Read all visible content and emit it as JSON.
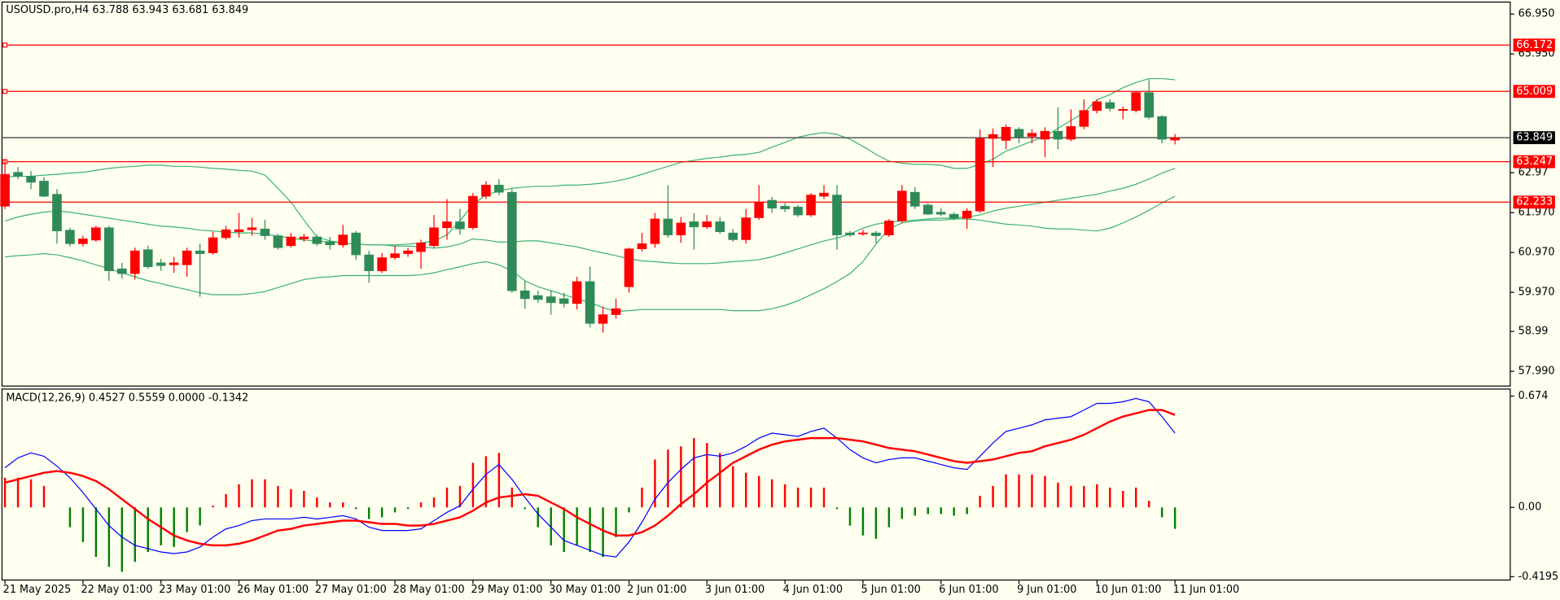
{
  "chart_data": [
    {
      "type": "candlestick",
      "title": "USOUSD.pro,H4  63.788 63.943 63.681 63.849",
      "categories": [
        "21 May 2025",
        null,
        null,
        null,
        null,
        null,
        "22 May 01:00",
        null,
        null,
        null,
        null,
        null,
        "23 May 01:00",
        null,
        null,
        null,
        null,
        null,
        "26 May 01:00",
        null,
        null,
        null,
        null,
        null,
        "27 May 01:00",
        null,
        null,
        null,
        null,
        null,
        "28 May 01:00",
        null,
        null,
        null,
        null,
        null,
        "29 May 01:00",
        null,
        null,
        null,
        null,
        null,
        "30 May 01:00",
        null,
        null,
        null,
        null,
        null,
        "2 Jun 01:00",
        null,
        null,
        null,
        null,
        null,
        "3 Jun 01:00",
        null,
        null,
        null,
        null,
        null,
        "4 Jun 01:00",
        null,
        null,
        null,
        null,
        null,
        "5 Jun 01:00",
        null,
        null,
        null,
        null,
        null,
        "6 Jun 01:00",
        null,
        null,
        null,
        null,
        null,
        "9 Jun 01:00",
        null,
        null,
        null,
        null,
        null,
        "10 Jun 01:00",
        null,
        null,
        null,
        null,
        null,
        "11 Jun 01:00"
      ],
      "open": [
        62.13,
        62.98,
        62.88,
        62.76,
        62.43,
        61.53,
        61.19,
        61.28,
        61.59,
        60.56,
        60.44,
        61.04,
        60.71,
        60.66,
        60.66,
        61.01,
        60.96,
        61.34,
        61.49,
        61.54,
        61.56,
        61.39,
        61.14,
        61.31,
        61.36,
        61.24,
        61.16,
        61.46,
        60.91,
        60.51,
        60.84,
        60.94,
        60.99,
        61.14,
        61.59,
        61.74,
        61.59,
        62.38,
        62.66,
        62.48,
        60.01,
        59.89,
        59.86,
        59.81,
        59.69,
        60.24,
        59.19,
        59.41,
        60.11,
        61.06,
        61.19,
        61.81,
        61.41,
        61.74,
        61.61,
        61.74,
        61.46,
        61.29,
        61.84,
        62.28,
        62.13,
        62.11,
        61.91,
        62.38,
        62.41,
        61.46,
        61.44,
        61.46,
        61.41,
        61.76,
        62.48,
        62.16,
        61.98,
        61.93,
        61.83,
        62.01,
        63.83,
        63.78,
        64.06,
        63.88,
        63.81,
        64.01,
        63.81,
        64.13,
        64.53,
        64.73,
        64.53,
        64.53,
        64.98,
        64.38,
        63.788
      ],
      "high": [
        63.31,
        63.11,
        63.01,
        62.86,
        62.56,
        61.59,
        61.39,
        61.64,
        61.64,
        60.71,
        61.09,
        61.14,
        60.81,
        60.86,
        61.09,
        61.19,
        61.49,
        61.64,
        61.96,
        61.84,
        61.79,
        61.44,
        61.46,
        61.44,
        61.41,
        61.36,
        61.66,
        61.51,
        61.01,
        60.96,
        61.14,
        61.09,
        61.29,
        61.91,
        62.31,
        62.06,
        62.46,
        62.76,
        62.81,
        62.56,
        60.26,
        60.01,
        60.01,
        59.96,
        60.36,
        60.61,
        59.61,
        59.81,
        61.09,
        61.46,
        61.96,
        62.66,
        61.86,
        61.96,
        61.91,
        61.86,
        61.56,
        62.06,
        62.66,
        62.36,
        62.21,
        62.16,
        62.46,
        62.66,
        62.66,
        61.51,
        61.54,
        61.51,
        61.81,
        62.66,
        62.61,
        62.21,
        62.08,
        61.98,
        62.08,
        64.06,
        64.08,
        64.18,
        64.11,
        64.06,
        64.11,
        64.61,
        64.56,
        64.81,
        64.81,
        64.81,
        64.63,
        65.01,
        65.31,
        64.41,
        63.943
      ],
      "low": [
        62.06,
        62.81,
        62.56,
        62.36,
        61.19,
        61.12,
        61.12,
        61.24,
        60.26,
        60.31,
        60.29,
        60.56,
        60.51,
        60.46,
        60.36,
        59.86,
        60.91,
        61.29,
        61.34,
        61.39,
        61.29,
        61.04,
        61.09,
        61.24,
        61.14,
        61.04,
        61.09,
        60.79,
        60.21,
        60.46,
        60.79,
        60.86,
        60.56,
        61.09,
        61.29,
        61.41,
        61.54,
        62.31,
        62.41,
        59.96,
        59.56,
        59.71,
        59.41,
        59.59,
        59.54,
        59.09,
        58.96,
        59.31,
        59.96,
        60.99,
        61.09,
        61.34,
        61.21,
        61.04,
        61.56,
        61.44,
        61.24,
        61.19,
        61.79,
        61.96,
        61.98,
        61.86,
        61.86,
        62.31,
        61.04,
        61.36,
        61.39,
        61.21,
        61.36,
        61.71,
        62.06,
        61.91,
        61.88,
        61.78,
        61.56,
        61.96,
        63.11,
        63.56,
        63.71,
        63.71,
        63.36,
        63.56,
        63.76,
        64.06,
        64.46,
        64.51,
        64.31,
        64.48,
        64.31,
        63.71,
        63.681
      ],
      "close": [
        62.93,
        62.88,
        62.73,
        62.38,
        61.51,
        61.19,
        61.31,
        61.59,
        60.51,
        60.44,
        61.01,
        60.61,
        60.64,
        60.71,
        61.01,
        60.94,
        61.34,
        61.54,
        61.54,
        61.59,
        61.39,
        61.09,
        61.36,
        61.36,
        61.19,
        61.16,
        61.41,
        60.91,
        60.51,
        60.84,
        60.94,
        61.01,
        61.21,
        61.59,
        61.74,
        61.56,
        62.38,
        62.66,
        62.48,
        60.01,
        59.81,
        59.79,
        59.71,
        59.69,
        60.24,
        59.19,
        59.41,
        59.56,
        61.06,
        61.19,
        61.81,
        61.41,
        61.71,
        61.61,
        61.74,
        61.49,
        61.29,
        61.84,
        62.24,
        62.08,
        62.06,
        61.91,
        62.41,
        62.46,
        61.41,
        61.41,
        61.46,
        61.39,
        61.76,
        62.51,
        62.13,
        61.93,
        61.93,
        61.83,
        62.01,
        63.83,
        63.93,
        64.11,
        63.86,
        63.96,
        64.01,
        63.81,
        64.13,
        64.53,
        64.75,
        64.58,
        64.56,
        64.98,
        64.36,
        63.81,
        63.849
      ],
      "up_color": "#ff0000",
      "down_color": "#2e8b57",
      "series": [
        {
          "name": "Upper Band",
          "color": "#3cb371",
          "values": [
            62.86,
            62.88,
            62.88,
            62.91,
            62.93,
            62.96,
            62.98,
            63.03,
            63.08,
            63.11,
            63.13,
            63.16,
            63.16,
            63.13,
            63.13,
            63.11,
            63.08,
            63.06,
            63.03,
            63.01,
            62.91,
            62.58,
            62.23,
            61.78,
            61.36,
            61.26,
            61.21,
            61.18,
            61.16,
            61.16,
            61.16,
            61.18,
            61.21,
            61.26,
            61.41,
            61.76,
            62.18,
            62.41,
            62.51,
            62.58,
            62.61,
            62.63,
            62.63,
            62.66,
            62.66,
            62.68,
            62.71,
            62.76,
            62.83,
            62.93,
            63.03,
            63.13,
            63.23,
            63.28,
            63.33,
            63.36,
            63.41,
            63.43,
            63.48,
            63.61,
            63.73,
            63.86,
            63.93,
            63.98,
            63.93,
            63.81,
            63.63,
            63.43,
            63.26,
            63.21,
            63.18,
            63.18,
            63.16,
            63.08,
            63.08,
            63.18,
            63.31,
            63.51,
            63.63,
            63.76,
            63.88,
            64.08,
            64.28,
            64.48,
            64.8,
            64.93,
            65.1,
            65.23,
            65.33,
            65.33,
            65.3
          ]
        },
        {
          "name": "Middle Band",
          "color": "#3cb371",
          "values": [
            61.76,
            61.86,
            61.93,
            61.98,
            62.01,
            61.98,
            61.93,
            61.88,
            61.83,
            61.78,
            61.73,
            61.68,
            61.63,
            61.61,
            61.58,
            61.53,
            61.51,
            61.48,
            61.46,
            61.46,
            61.43,
            61.38,
            61.33,
            61.28,
            61.26,
            61.23,
            61.21,
            61.18,
            61.16,
            61.16,
            61.13,
            61.13,
            61.11,
            61.08,
            61.11,
            61.18,
            61.31,
            61.28,
            61.23,
            61.23,
            61.26,
            61.26,
            61.21,
            61.16,
            61.11,
            61.03,
            60.96,
            60.89,
            60.81,
            60.76,
            60.74,
            60.71,
            60.69,
            60.69,
            60.69,
            60.71,
            60.74,
            60.76,
            60.79,
            60.86,
            60.96,
            61.06,
            61.16,
            61.26,
            61.33,
            61.43,
            61.58,
            61.68,
            61.73,
            61.76,
            61.78,
            61.81,
            61.83,
            61.83,
            61.86,
            61.91,
            62.01,
            62.08,
            62.13,
            62.18,
            62.23,
            62.28,
            62.33,
            62.38,
            62.43,
            62.51,
            62.58,
            62.68,
            62.81,
            62.96,
            63.08
          ]
        },
        {
          "name": "Lower Band",
          "color": "#3cb371",
          "values": [
            60.86,
            60.89,
            60.91,
            60.94,
            60.91,
            60.84,
            60.76,
            60.66,
            60.56,
            60.46,
            60.36,
            60.26,
            60.19,
            60.11,
            60.04,
            59.96,
            59.91,
            59.91,
            59.91,
            59.94,
            59.99,
            60.09,
            60.19,
            60.29,
            60.34,
            60.36,
            60.39,
            60.39,
            60.39,
            60.39,
            60.39,
            60.39,
            60.41,
            60.46,
            60.54,
            60.61,
            60.69,
            60.74,
            60.66,
            60.51,
            60.26,
            60.11,
            60.01,
            59.91,
            59.81,
            59.71,
            59.59,
            59.49,
            59.51,
            59.54,
            59.54,
            59.54,
            59.54,
            59.54,
            59.54,
            59.54,
            59.51,
            59.51,
            59.51,
            59.56,
            59.64,
            59.76,
            59.91,
            60.06,
            60.24,
            60.44,
            60.74,
            61.18,
            61.56,
            61.71,
            61.76,
            61.78,
            61.78,
            61.81,
            61.81,
            61.78,
            61.73,
            61.68,
            61.66,
            61.63,
            61.58,
            61.56,
            61.56,
            61.53,
            61.51,
            61.58,
            61.71,
            61.86,
            62.03,
            62.21,
            62.38
          ]
        }
      ],
      "levels": [
        {
          "value": 66.172,
          "label": "66.172"
        },
        {
          "value": 65.009,
          "label": "65.009"
        },
        {
          "value": 63.247,
          "label": "63.247"
        },
        {
          "value": 62.233,
          "label": "62.233"
        }
      ],
      "level_color": "#ff0000",
      "current_price": 63.849,
      "current_color": "#555555",
      "ylim": [
        57.62,
        67.25
      ],
      "yticks": [
        {
          "value": 66.95,
          "label": "66.950"
        },
        {
          "value": 65.95,
          "label": "65.950"
        },
        62.97,
        {
          "value": 61.97,
          "label": "61.970"
        },
        {
          "value": 60.97,
          "label": "60.970"
        },
        {
          "value": 59.97,
          "label": "59.970"
        },
        58.99,
        {
          "value": 57.99,
          "label": "57.990"
        }
      ]
    },
    {
      "type": "macd",
      "title": "MACD(12,26,9) 0.4527 0.5559 0.0000 -0.1342",
      "histogram": [
        0.18,
        0.18,
        0.17,
        0.13,
        0.0,
        -0.12,
        -0.21,
        -0.3,
        -0.36,
        -0.39,
        -0.33,
        -0.27,
        -0.23,
        -0.24,
        -0.15,
        -0.11,
        0.01,
        0.08,
        0.14,
        0.17,
        0.17,
        0.13,
        0.11,
        0.1,
        0.06,
        0.03,
        0.03,
        -0.01,
        -0.07,
        -0.06,
        -0.03,
        -0.01,
        0.03,
        0.06,
        0.12,
        0.13,
        0.27,
        0.31,
        0.33,
        0.12,
        -0.01,
        -0.12,
        -0.23,
        -0.27,
        -0.23,
        -0.27,
        -0.3,
        -0.18,
        -0.03,
        0.12,
        0.29,
        0.35,
        0.37,
        0.42,
        0.39,
        0.33,
        0.25,
        0.21,
        0.19,
        0.17,
        0.14,
        0.12,
        0.12,
        0.12,
        -0.01,
        -0.11,
        -0.17,
        -0.19,
        -0.12,
        -0.07,
        -0.05,
        -0.04,
        -0.04,
        -0.05,
        -0.04,
        0.07,
        0.13,
        0.2,
        0.2,
        0.2,
        0.19,
        0.15,
        0.13,
        0.13,
        0.14,
        0.12,
        0.1,
        0.12,
        0.04,
        -0.06,
        -0.13
      ],
      "up_color": "#ff0000",
      "down_color": "#008000",
      "series": [
        {
          "name": "MACD",
          "color": "#0000ff",
          "values": [
            0.24,
            0.3,
            0.33,
            0.31,
            0.25,
            0.18,
            0.09,
            -0.01,
            -0.11,
            -0.18,
            -0.23,
            -0.25,
            -0.27,
            -0.28,
            -0.27,
            -0.24,
            -0.18,
            -0.13,
            -0.11,
            -0.08,
            -0.07,
            -0.07,
            -0.07,
            -0.06,
            -0.07,
            -0.06,
            -0.05,
            -0.07,
            -0.12,
            -0.14,
            -0.14,
            -0.14,
            -0.13,
            -0.08,
            -0.03,
            0.01,
            0.11,
            0.2,
            0.26,
            0.17,
            0.06,
            -0.04,
            -0.12,
            -0.2,
            -0.23,
            -0.26,
            -0.29,
            -0.3,
            -0.21,
            -0.09,
            0.05,
            0.15,
            0.23,
            0.3,
            0.32,
            0.31,
            0.33,
            0.37,
            0.42,
            0.45,
            0.44,
            0.43,
            0.46,
            0.48,
            0.42,
            0.35,
            0.3,
            0.27,
            0.29,
            0.3,
            0.3,
            0.28,
            0.26,
            0.24,
            0.23,
            0.31,
            0.39,
            0.46,
            0.48,
            0.5,
            0.53,
            0.54,
            0.55,
            0.59,
            0.63,
            0.63,
            0.64,
            0.66,
            0.64,
            0.55,
            0.45
          ]
        },
        {
          "name": "Signal",
          "color": "#ff0000",
          "values": [
            0.15,
            0.17,
            0.19,
            0.21,
            0.22,
            0.21,
            0.19,
            0.16,
            0.11,
            0.05,
            -0.01,
            -0.07,
            -0.12,
            -0.17,
            -0.2,
            -0.22,
            -0.23,
            -0.23,
            -0.22,
            -0.2,
            -0.17,
            -0.14,
            -0.13,
            -0.11,
            -0.1,
            -0.09,
            -0.08,
            -0.08,
            -0.09,
            -0.1,
            -0.1,
            -0.11,
            -0.11,
            -0.1,
            -0.08,
            -0.06,
            -0.02,
            0.03,
            0.06,
            0.07,
            0.08,
            0.07,
            0.03,
            -0.01,
            -0.06,
            -0.1,
            -0.14,
            -0.17,
            -0.17,
            -0.15,
            -0.11,
            -0.05,
            0.02,
            0.08,
            0.15,
            0.21,
            0.27,
            0.31,
            0.35,
            0.38,
            0.4,
            0.41,
            0.42,
            0.42,
            0.42,
            0.41,
            0.4,
            0.38,
            0.36,
            0.35,
            0.34,
            0.32,
            0.3,
            0.28,
            0.27,
            0.28,
            0.29,
            0.31,
            0.33,
            0.34,
            0.37,
            0.39,
            0.41,
            0.44,
            0.48,
            0.52,
            0.55,
            0.57,
            0.59,
            0.59,
            0.56
          ]
        }
      ],
      "ylim": [
        -0.44,
        0.717
      ],
      "yticks": [
        0.674,
        {
          "value": 0,
          "label": "0.00"
        },
        -0.4195
      ]
    }
  ]
}
